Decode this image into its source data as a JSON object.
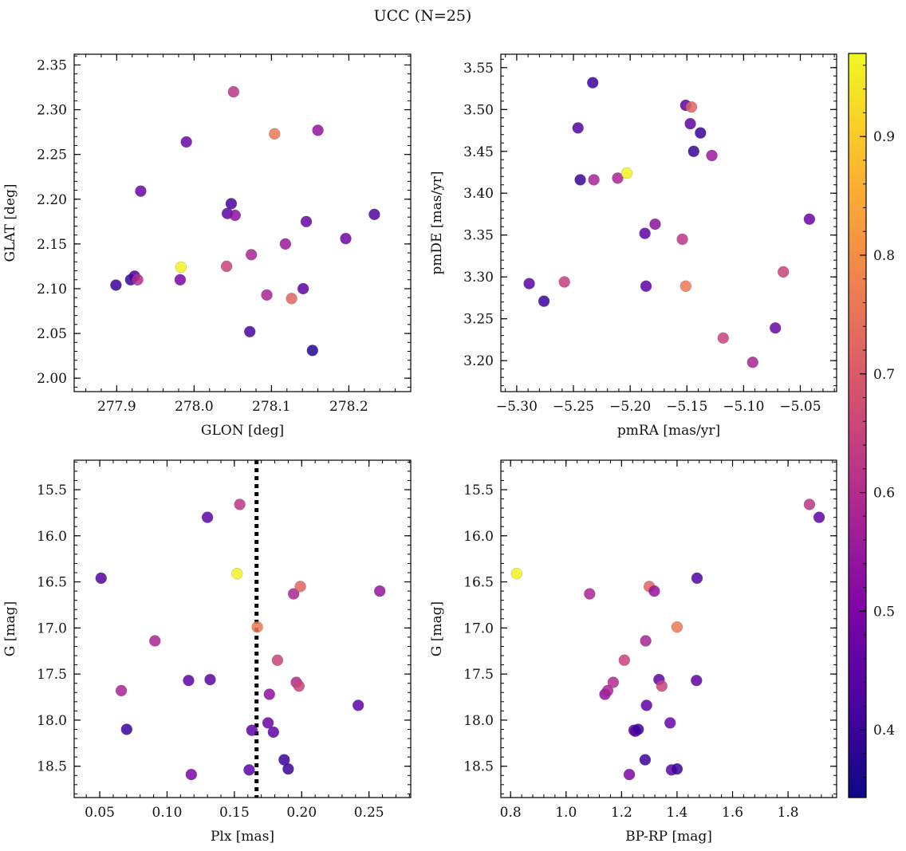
{
  "figure_title": "UCC (N=25)",
  "chart_data": [
    {
      "type": "scatter",
      "xlabel": "GLON [deg]",
      "ylabel": "GLAT [deg]",
      "xlim": [
        277.845,
        278.28
      ],
      "ylim": [
        1.985,
        2.362
      ],
      "xticks": [
        277.9,
        278.0,
        278.1,
        278.2
      ],
      "xtick_labels": [
        "277.9",
        "278.0",
        "278.1",
        "278.2"
      ],
      "yticks": [
        2.0,
        2.05,
        2.1,
        2.15,
        2.2,
        2.25,
        2.3,
        2.35
      ],
      "ytick_labels": [
        "2.00",
        "2.05",
        "2.10",
        "2.15",
        "2.20",
        "2.25",
        "2.30",
        "2.35"
      ],
      "points": [
        {
          "x": 277.899,
          "y": 2.104,
          "c": 0.4
        },
        {
          "x": 277.918,
          "y": 2.11,
          "c": 0.4
        },
        {
          "x": 277.923,
          "y": 2.114,
          "c": 0.42
        },
        {
          "x": 277.927,
          "y": 2.11,
          "c": 0.6
        },
        {
          "x": 277.931,
          "y": 2.209,
          "c": 0.47
        },
        {
          "x": 277.982,
          "y": 2.11,
          "c": 0.5
        },
        {
          "x": 277.983,
          "y": 2.124,
          "c": 0.96
        },
        {
          "x": 277.99,
          "y": 2.264,
          "c": 0.47
        },
        {
          "x": 278.042,
          "y": 2.125,
          "c": 0.65
        },
        {
          "x": 278.043,
          "y": 2.184,
          "c": 0.45
        },
        {
          "x": 278.048,
          "y": 2.195,
          "c": 0.42
        },
        {
          "x": 278.051,
          "y": 2.32,
          "c": 0.62
        },
        {
          "x": 278.053,
          "y": 2.182,
          "c": 0.53
        },
        {
          "x": 278.072,
          "y": 2.052,
          "c": 0.42
        },
        {
          "x": 278.074,
          "y": 2.138,
          "c": 0.58
        },
        {
          "x": 278.094,
          "y": 2.093,
          "c": 0.58
        },
        {
          "x": 278.104,
          "y": 2.273,
          "c": 0.76
        },
        {
          "x": 278.118,
          "y": 2.15,
          "c": 0.55
        },
        {
          "x": 278.126,
          "y": 2.089,
          "c": 0.72
        },
        {
          "x": 278.141,
          "y": 2.1,
          "c": 0.45
        },
        {
          "x": 278.145,
          "y": 2.175,
          "c": 0.47
        },
        {
          "x": 278.153,
          "y": 2.031,
          "c": 0.37
        },
        {
          "x": 278.16,
          "y": 2.277,
          "c": 0.54
        },
        {
          "x": 278.196,
          "y": 2.156,
          "c": 0.48
        },
        {
          "x": 278.233,
          "y": 2.183,
          "c": 0.43
        }
      ]
    },
    {
      "type": "scatter",
      "xlabel": "pmRA [mas/yr]",
      "ylabel": "pmDE [mas/yr]",
      "xlim": [
        -5.314,
        -5.018
      ],
      "ylim": [
        3.163,
        3.566
      ],
      "xticks": [
        -5.3,
        -5.25,
        -5.2,
        -5.15,
        -5.1,
        -5.05
      ],
      "xtick_labels": [
        "−5.30",
        "−5.25",
        "−5.20",
        "−5.15",
        "−5.10",
        "−5.05"
      ],
      "yticks": [
        3.2,
        3.25,
        3.3,
        3.35,
        3.4,
        3.45,
        3.5,
        3.55
      ],
      "ytick_labels": [
        "3.20",
        "3.25",
        "3.30",
        "3.35",
        "3.40",
        "3.45",
        "3.50",
        "3.55"
      ],
      "points": [
        {
          "x": -5.289,
          "y": 3.292,
          "c": 0.45
        },
        {
          "x": -5.276,
          "y": 3.271,
          "c": 0.4
        },
        {
          "x": -5.258,
          "y": 3.294,
          "c": 0.64
        },
        {
          "x": -5.246,
          "y": 3.478,
          "c": 0.43
        },
        {
          "x": -5.244,
          "y": 3.416,
          "c": 0.4
        },
        {
          "x": -5.233,
          "y": 3.532,
          "c": 0.4
        },
        {
          "x": -5.232,
          "y": 3.416,
          "c": 0.58
        },
        {
          "x": -5.211,
          "y": 3.418,
          "c": 0.58
        },
        {
          "x": -5.203,
          "y": 3.424,
          "c": 0.96
        },
        {
          "x": -5.187,
          "y": 3.352,
          "c": 0.45
        },
        {
          "x": -5.186,
          "y": 3.289,
          "c": 0.45
        },
        {
          "x": -5.178,
          "y": 3.363,
          "c": 0.53
        },
        {
          "x": -5.154,
          "y": 3.345,
          "c": 0.62
        },
        {
          "x": -5.151,
          "y": 3.505,
          "c": 0.45
        },
        {
          "x": -5.151,
          "y": 3.289,
          "c": 0.76
        },
        {
          "x": -5.147,
          "y": 3.483,
          "c": 0.45
        },
        {
          "x": -5.146,
          "y": 3.503,
          "c": 0.72
        },
        {
          "x": -5.144,
          "y": 3.45,
          "c": 0.4
        },
        {
          "x": -5.138,
          "y": 3.472,
          "c": 0.4
        },
        {
          "x": -5.128,
          "y": 3.445,
          "c": 0.55
        },
        {
          "x": -5.118,
          "y": 3.227,
          "c": 0.65
        },
        {
          "x": -5.092,
          "y": 3.198,
          "c": 0.58
        },
        {
          "x": -5.072,
          "y": 3.239,
          "c": 0.47
        },
        {
          "x": -5.065,
          "y": 3.306,
          "c": 0.65
        },
        {
          "x": -5.042,
          "y": 3.369,
          "c": 0.47
        }
      ]
    },
    {
      "type": "scatter",
      "xlabel": "Plx [mas]",
      "ylabel": "G [mag]",
      "xlim": [
        0.031,
        0.281
      ],
      "ylim": [
        18.84,
        15.18
      ],
      "y_inverted": true,
      "vline_x": 0.1665,
      "vline_style": "dotted",
      "xticks": [
        0.05,
        0.1,
        0.15,
        0.2,
        0.25
      ],
      "xtick_labels": [
        "0.05",
        "0.10",
        "0.15",
        "0.20",
        "0.25"
      ],
      "yticks": [
        15.5,
        16.0,
        16.5,
        17.0,
        17.5,
        18.0,
        18.5
      ],
      "ytick_labels": [
        "15.5",
        "16.0",
        "16.5",
        "17.0",
        "17.5",
        "18.0",
        "18.5"
      ],
      "points": [
        {
          "x": 0.051,
          "y": 16.46,
          "c": 0.43
        },
        {
          "x": 0.066,
          "y": 17.68,
          "c": 0.58
        },
        {
          "x": 0.07,
          "y": 18.1,
          "c": 0.4
        },
        {
          "x": 0.091,
          "y": 17.14,
          "c": 0.58
        },
        {
          "x": 0.116,
          "y": 17.57,
          "c": 0.45
        },
        {
          "x": 0.118,
          "y": 18.59,
          "c": 0.5
        },
        {
          "x": 0.13,
          "y": 15.8,
          "c": 0.45
        },
        {
          "x": 0.132,
          "y": 17.56,
          "c": 0.45
        },
        {
          "x": 0.152,
          "y": 16.41,
          "c": 0.96
        },
        {
          "x": 0.154,
          "y": 15.66,
          "c": 0.62
        },
        {
          "x": 0.161,
          "y": 18.54,
          "c": 0.45
        },
        {
          "x": 0.163,
          "y": 18.11,
          "c": 0.45
        },
        {
          "x": 0.167,
          "y": 16.99,
          "c": 0.76
        },
        {
          "x": 0.175,
          "y": 18.03,
          "c": 0.47
        },
        {
          "x": 0.176,
          "y": 17.72,
          "c": 0.53
        },
        {
          "x": 0.179,
          "y": 18.13,
          "c": 0.45
        },
        {
          "x": 0.182,
          "y": 17.35,
          "c": 0.65
        },
        {
          "x": 0.187,
          "y": 18.43,
          "c": 0.4
        },
        {
          "x": 0.19,
          "y": 18.53,
          "c": 0.4
        },
        {
          "x": 0.194,
          "y": 16.63,
          "c": 0.58
        },
        {
          "x": 0.196,
          "y": 17.59,
          "c": 0.6
        },
        {
          "x": 0.198,
          "y": 17.63,
          "c": 0.65
        },
        {
          "x": 0.199,
          "y": 16.55,
          "c": 0.72
        },
        {
          "x": 0.242,
          "y": 17.84,
          "c": 0.45
        },
        {
          "x": 0.258,
          "y": 16.6,
          "c": 0.54
        }
      ]
    },
    {
      "type": "scatter",
      "xlabel": "BP-RP [mag]",
      "ylabel": "G [mag]",
      "xlim": [
        0.765,
        1.975
      ],
      "ylim": [
        18.84,
        15.18
      ],
      "y_inverted": true,
      "xticks": [
        0.8,
        1.0,
        1.2,
        1.4,
        1.6,
        1.8
      ],
      "xtick_labels": [
        "0.8",
        "1.0",
        "1.2",
        "1.4",
        "1.6",
        "1.8"
      ],
      "yticks": [
        15.5,
        16.0,
        16.5,
        17.0,
        17.5,
        18.0,
        18.5
      ],
      "ytick_labels": [
        "15.5",
        "16.0",
        "16.5",
        "17.0",
        "17.5",
        "18.0",
        "18.5"
      ],
      "points": [
        {
          "x": 0.822,
          "y": 16.41,
          "c": 0.96
        },
        {
          "x": 1.085,
          "y": 16.63,
          "c": 0.58
        },
        {
          "x": 1.14,
          "y": 17.72,
          "c": 0.53
        },
        {
          "x": 1.15,
          "y": 17.68,
          "c": 0.58
        },
        {
          "x": 1.17,
          "y": 17.59,
          "c": 0.6
        },
        {
          "x": 1.21,
          "y": 17.35,
          "c": 0.65
        },
        {
          "x": 1.228,
          "y": 18.59,
          "c": 0.5
        },
        {
          "x": 1.245,
          "y": 18.11,
          "c": 0.45
        },
        {
          "x": 1.25,
          "y": 18.12,
          "c": 0.45
        },
        {
          "x": 1.26,
          "y": 18.1,
          "c": 0.4
        },
        {
          "x": 1.285,
          "y": 18.43,
          "c": 0.4
        },
        {
          "x": 1.287,
          "y": 17.14,
          "c": 0.58
        },
        {
          "x": 1.29,
          "y": 17.84,
          "c": 0.45
        },
        {
          "x": 1.3,
          "y": 16.55,
          "c": 0.72
        },
        {
          "x": 1.318,
          "y": 16.6,
          "c": 0.54
        },
        {
          "x": 1.335,
          "y": 17.56,
          "c": 0.45
        },
        {
          "x": 1.345,
          "y": 17.63,
          "c": 0.65
        },
        {
          "x": 1.375,
          "y": 18.03,
          "c": 0.47
        },
        {
          "x": 1.38,
          "y": 18.54,
          "c": 0.45
        },
        {
          "x": 1.4,
          "y": 18.53,
          "c": 0.4
        },
        {
          "x": 1.4,
          "y": 16.99,
          "c": 0.76
        },
        {
          "x": 1.47,
          "y": 17.57,
          "c": 0.45
        },
        {
          "x": 1.472,
          "y": 16.46,
          "c": 0.43
        },
        {
          "x": 1.877,
          "y": 15.66,
          "c": 0.62
        },
        {
          "x": 1.912,
          "y": 15.8,
          "c": 0.45
        }
      ]
    }
  ],
  "colorbar": {
    "min": 0.343,
    "max": 0.97,
    "ticks": [
      0.4,
      0.5,
      0.6,
      0.7,
      0.8,
      0.9
    ],
    "tick_labels": [
      "0.4",
      "0.5",
      "0.6",
      "0.7",
      "0.8",
      "0.9"
    ],
    "colormap": "plasma"
  }
}
